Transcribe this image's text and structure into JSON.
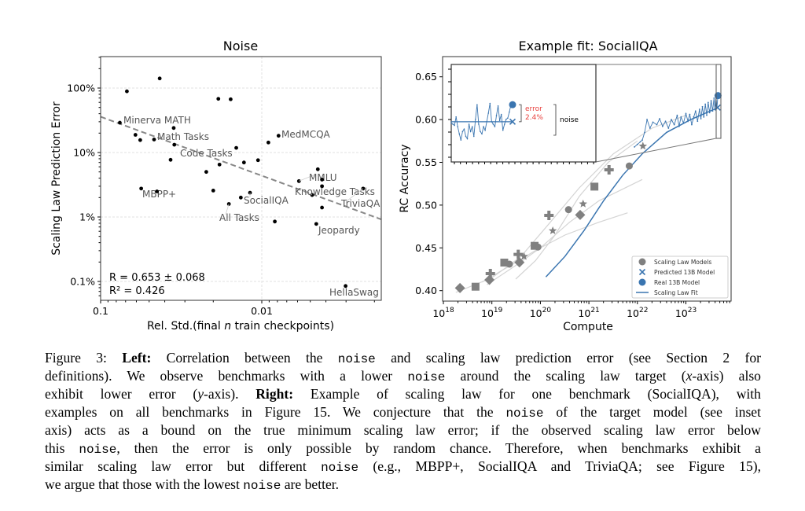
{
  "chart_data": [
    {
      "type": "scatter",
      "title": "Noise",
      "xlabel_parts": [
        "Rel. Std.(final ",
        "n",
        " train checkpoints)"
      ],
      "ylabel": "Scaling Law Prediction Error",
      "x_scale": "log-reversed",
      "y_scale": "log",
      "xlim": [
        0.1,
        0.0018
      ],
      "ylim": [
        0.05,
        310
      ],
      "x_ticks": [
        {
          "v": 0.1,
          "label": "0.1"
        },
        {
          "v": 0.01,
          "label": "0.01"
        }
      ],
      "y_ticks": [
        {
          "v": 0.1,
          "label": "0.1%"
        },
        {
          "v": 1,
          "label": "1%"
        },
        {
          "v": 10,
          "label": "10%"
        },
        {
          "v": 100,
          "label": "100%"
        }
      ],
      "grid": true,
      "point_color": "#000000",
      "points": [
        {
          "x": 0.0687,
          "y": 89
        },
        {
          "x": 0.043,
          "y": 141
        },
        {
          "x": 0.076,
          "y": 29,
          "label": "Minerva MATH"
        },
        {
          "x": 0.0608,
          "y": 18.8
        },
        {
          "x": 0.0568,
          "y": 15.6
        },
        {
          "x": 0.0466,
          "y": 15.9,
          "label": "Math Tasks"
        },
        {
          "x": 0.0352,
          "y": 24
        },
        {
          "x": 0.0349,
          "y": 13.2
        },
        {
          "x": 0.0368,
          "y": 7.7
        },
        {
          "x": 0.0186,
          "y": 68
        },
        {
          "x": 0.0156,
          "y": 67
        },
        {
          "x": 0.0144,
          "y": 11.8
        },
        {
          "x": 0.0129,
          "y": 7.0
        },
        {
          "x": 0.01055,
          "y": 7.6
        },
        {
          "x": 0.0091,
          "y": 14.3
        },
        {
          "x": 0.00787,
          "y": 18.2,
          "label": "MedMCQA"
        },
        {
          "x": 0.0183,
          "y": 6.5
        },
        {
          "x": 0.0221,
          "y": 5.0
        },
        {
          "x": 0.02,
          "y": 2.57
        },
        {
          "x": 0.056,
          "y": 2.76,
          "label": "MBPP+"
        },
        {
          "x": 0.0447,
          "y": 2.49
        },
        {
          "x": 0.01349,
          "y": 2.0
        },
        {
          "x": 0.01183,
          "y": 2.38,
          "label": "SocialIQA"
        },
        {
          "x": 0.016,
          "y": 1.59,
          "label": "All Tasks"
        },
        {
          "x": 0.0083,
          "y": 0.85
        },
        {
          "x": 0.00588,
          "y": 3.6,
          "label": "MMLU"
        },
        {
          "x": 0.00449,
          "y": 5.5
        },
        {
          "x": 0.00423,
          "y": 3.8
        },
        {
          "x": 0.00423,
          "y": 3.0
        },
        {
          "x": 0.00487,
          "y": 2.19,
          "label": "Knowledge Tasks"
        },
        {
          "x": 0.00423,
          "y": 1.4
        },
        {
          "x": 0.00459,
          "y": 0.78,
          "label": "Jeopardy"
        },
        {
          "x": 0.00235,
          "y": 2.76,
          "label": "TriviaQA"
        },
        {
          "x": 0.00302,
          "y": 0.085,
          "label": "HellaSwag"
        },
        {
          "label": "Code Tasks"
        }
      ],
      "fit_line": {
        "from": [
          0.1,
          35.9
        ],
        "to": [
          0.00182,
          0.92
        ],
        "color": "#888888",
        "style": "dashed"
      },
      "annotations": [
        "R = 0.653 ± 0.068",
        "R² = 0.426"
      ]
    },
    {
      "type": "line",
      "title": "Example fit: SocialIQA",
      "xlabel": "Compute",
      "ylabel": "RC Accuracy",
      "x_scale": "log",
      "xlim": [
        1e+18,
        8.3e+23
      ],
      "ylim": [
        0.3878,
        0.6736
      ],
      "x_ticks": [
        {
          "v": 1e+18,
          "base": "10",
          "exp": "18"
        },
        {
          "v": 1e+19,
          "base": "10",
          "exp": "19"
        },
        {
          "v": 1e+20,
          "base": "10",
          "exp": "20"
        },
        {
          "v": 1e+21,
          "base": "10",
          "exp": "21"
        },
        {
          "v": 1e+22,
          "base": "10",
          "exp": "22"
        },
        {
          "v": 1e+23,
          "base": "10",
          "exp": "23"
        }
      ],
      "y_ticks": [
        {
          "v": 0.4,
          "label": "0.40"
        },
        {
          "v": 0.45,
          "label": "0.45"
        },
        {
          "v": 0.5,
          "label": "0.50"
        },
        {
          "v": 0.55,
          "label": "0.55"
        },
        {
          "v": 0.6,
          "label": "0.60"
        },
        {
          "v": 0.65,
          "label": "0.65"
        }
      ],
      "colors": {
        "gray": "#808080",
        "blue": "#3a75b0",
        "curve": "#d4d4d4",
        "red": "#e8423f"
      },
      "scaling_law_models": [
        {
          "marker": "diamond",
          "points": [
            [
              2.2e+18,
              0.403
            ],
            [
              8.9e+18,
              0.4126
            ],
            [
              3.7e+19,
              0.433
            ],
            [
              6.6e+20,
              0.4885
            ]
          ]
        },
        {
          "marker": "square",
          "points": [
            [
              4.6e+18,
              0.4046
            ],
            [
              1.8e+19,
              0.4328
            ],
            [
              7.6e+19,
              0.4524
            ],
            [
              1.3e+21,
              0.5216
            ]
          ]
        },
        {
          "marker": "circle",
          "points": [
            [
              2.3e+19,
              0.431
            ],
            [
              8.9e+19,
              0.451
            ],
            [
              3.8e+20,
              0.4947
            ],
            [
              6.8e+21,
              0.5458
            ]
          ]
        },
        {
          "marker": "plus",
          "points": [
            [
              9.3e+18,
              0.42
            ],
            [
              3.5e+19,
              0.4423
            ],
            [
              1.5e+20,
              0.488
            ],
            [
              2.6e+21,
              0.5413
            ]
          ]
        },
        {
          "marker": "star",
          "points": [
            [
              4.6e+19,
              0.44
            ],
            [
              1.8e+20,
              0.47
            ],
            [
              7.6e+20,
              0.5014
            ],
            [
              1.3e+22,
              0.569
            ]
          ]
        }
      ],
      "model_curves": [
        [
          [
            1.8e+18,
            0.398
          ],
          [
            1e+19,
            0.415
          ],
          [
            4e+19,
            0.44
          ],
          [
            1.6e+20,
            0.48
          ],
          [
            6.3e+20,
            0.52
          ],
          [
            3.2e+21,
            0.56
          ],
          [
            2e+22,
            0.59
          ],
          [
            1e+23,
            0.605
          ]
        ],
        [
          [
            7.9e+18,
            0.407
          ],
          [
            3.2e+19,
            0.43
          ],
          [
            1e+20,
            0.45
          ],
          [
            4e+20,
            0.48
          ],
          [
            1.6e+21,
            0.505
          ],
          [
            1.26e+22,
            0.53
          ]
        ],
        [
          [
            6.3e+18,
            0.41
          ],
          [
            2.5e+19,
            0.43
          ],
          [
            7.9e+19,
            0.447
          ],
          [
            3.2e+20,
            0.465
          ],
          [
            1.6e+21,
            0.48
          ],
          [
            6.3e+21,
            0.491
          ]
        ],
        [
          [
            3.1e+19,
            0.4135
          ],
          [
            7.9e+19,
            0.435
          ],
          [
            2e+20,
            0.465
          ],
          [
            6.3e+20,
            0.51
          ],
          [
            2.5e+21,
            0.55
          ],
          [
            1e+22,
            0.575
          ]
        ]
      ],
      "scaling_law_fit": [
        [
          1.3e+20,
          0.416
        ],
        [
          3.2e+20,
          0.44
        ],
        [
          7.9e+20,
          0.47
        ],
        [
          2e+21,
          0.505
        ],
        [
          5e+21,
          0.535
        ],
        [
          1.26e+22,
          0.56
        ],
        [
          4e+22,
          0.585
        ],
        [
          1.26e+23,
          0.6
        ],
        [
          4.6e+23,
          0.614
        ]
      ],
      "target_checkpoints": [
        [
          8.7e+21,
          0.568
        ],
        [
          1e+22,
          0.571
        ],
        [
          1.15e+22,
          0.574
        ],
        [
          1.26e+22,
          0.576
        ],
        [
          1.41e+22,
          0.585
        ],
        [
          1.58e+22,
          0.6
        ],
        [
          1.82e+22,
          0.59
        ],
        [
          2.09e+22,
          0.597
        ],
        [
          2.51e+22,
          0.594
        ],
        [
          2.88e+22,
          0.601
        ],
        [
          3.31e+22,
          0.592
        ],
        [
          3.8e+22,
          0.598
        ],
        [
          4.37e+22,
          0.59
        ],
        [
          5.01e+22,
          0.6
        ],
        [
          5.75e+22,
          0.594
        ],
        [
          6.61e+22,
          0.605
        ],
        [
          7.24e+22,
          0.592
        ],
        [
          7.94e+22,
          0.603
        ],
        [
          8.91e+22,
          0.596
        ],
        [
          1e+23,
          0.607
        ],
        [
          1.1e+23,
          0.598
        ],
        [
          1.2e+23,
          0.606
        ],
        [
          1.32e+23,
          0.594
        ],
        [
          1.45e+23,
          0.603
        ],
        [
          1.58e+23,
          0.61
        ],
        [
          1.74e+23,
          0.598
        ],
        [
          1.91e+23,
          0.612
        ],
        [
          2.04e+23,
          0.601
        ],
        [
          2.19e+23,
          0.615
        ],
        [
          2.34e+23,
          0.603
        ],
        [
          2.51e+23,
          0.618
        ],
        [
          2.69e+23,
          0.605
        ],
        [
          2.88e+23,
          0.62
        ],
        [
          3.09e+23,
          0.608
        ],
        [
          3.31e+23,
          0.622
        ],
        [
          3.55e+23,
          0.61
        ],
        [
          3.8e+23,
          0.625
        ],
        [
          3.98e+23,
          0.612
        ],
        [
          4.17e+23,
          0.626
        ],
        [
          4.37e+23,
          0.614
        ],
        [
          4.57e+23,
          0.628
        ]
      ],
      "predicted_13b": [
        4.5e+23,
        0.614
      ],
      "real_13b": [
        4.6e+23,
        0.628
      ],
      "legend": {
        "placement": "lower-right",
        "entries": [
          "Scaling Law Models",
          "Predicted 13B Model",
          "Real 13B Model",
          "Scaling Law Fit"
        ]
      },
      "inset": {
        "ylim": [
          0.565,
          0.645
        ],
        "fit_value": 0.598,
        "predicted": 0.598,
        "real": 0.612,
        "checkpoint_values": [
          0.597,
          0.596,
          0.595,
          0.602,
          0.594,
          0.588,
          0.583,
          0.59,
          0.592,
          0.586,
          0.584,
          0.596,
          0.59,
          0.594,
          0.586,
          0.6,
          0.612,
          0.596,
          0.59,
          0.588,
          0.594,
          0.591,
          0.598,
          0.605,
          0.613,
          0.598,
          0.596,
          0.594,
          0.603,
          0.611,
          0.599,
          0.604,
          0.591,
          0.596,
          0.6,
          0.601,
          0.606,
          0.612
        ],
        "error_label": "error",
        "error_value": "2.4%",
        "noise_label": "noise"
      }
    }
  ],
  "caption": {
    "lines": [
      [
        {
          "t": "Figure 3: "
        },
        {
          "t": "Left:",
          "s": "b"
        },
        {
          "t": " Correlation between the "
        },
        {
          "t": "noise",
          "s": "m"
        },
        {
          "t": " and scaling law prediction error (see Section 2 for"
        }
      ],
      [
        {
          "t": "definitions). We observe benchmarks with a lower "
        },
        {
          "t": "noise",
          "s": "m"
        },
        {
          "t": " around the scaling law target ("
        },
        {
          "t": "x",
          "s": "i"
        },
        {
          "t": "-axis) also"
        }
      ],
      [
        {
          "t": "exhibit lower error ("
        },
        {
          "t": "y",
          "s": "i"
        },
        {
          "t": "-axis). "
        },
        {
          "t": "Right:",
          "s": "b"
        },
        {
          "t": " Example of scaling law for one benchmark (SocialIQA), with"
        }
      ],
      [
        {
          "t": "examples on all benchmarks in Figure 15. We conjecture that the "
        },
        {
          "t": "noise",
          "s": "m"
        },
        {
          "t": " of the target model (see inset"
        }
      ],
      [
        {
          "t": "axis) acts as a bound on the true minimum scaling law error; if the observed scaling law error below"
        }
      ],
      [
        {
          "t": "this "
        },
        {
          "t": "noise",
          "s": "m"
        },
        {
          "t": ", then the error is only possible by random chance. Therefore, when benchmarks exhibit a"
        }
      ],
      [
        {
          "t": "similar scaling law error but different "
        },
        {
          "t": "noise",
          "s": "m"
        },
        {
          "t": " (e.g., MBPP+, SocialIQA and TriviaQA; see Figure 15),"
        }
      ],
      [
        {
          "t": "we argue that those with the lowest "
        },
        {
          "t": "noise",
          "s": "m"
        },
        {
          "t": " are better."
        }
      ]
    ]
  }
}
